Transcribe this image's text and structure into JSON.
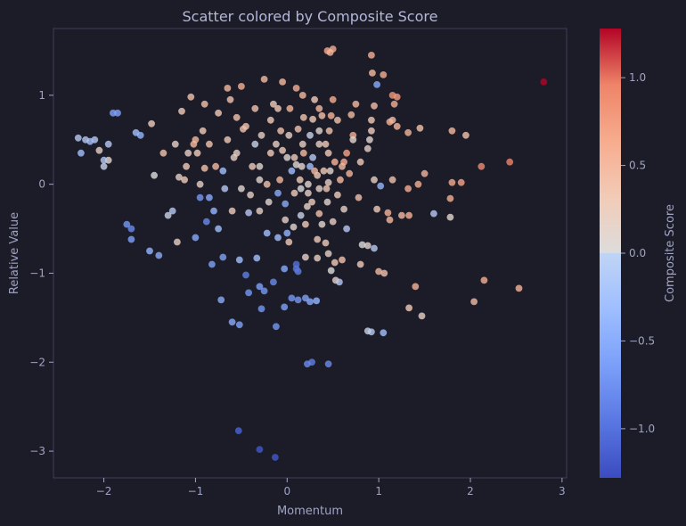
{
  "chart_data": {
    "type": "scatter",
    "title": "Scatter colored by Composite Score",
    "xlabel": "Momentum",
    "ylabel": "Relative Value",
    "colorbar_label": "Composite Score",
    "xlim": [
      -2.55,
      3.05
    ],
    "ylim": [
      -3.3,
      1.75
    ],
    "x_ticks": [
      -2,
      -1,
      0,
      1,
      2,
      3
    ],
    "x_tick_labels": [
      "−2",
      "−1",
      "0",
      "1",
      "2",
      "3"
    ],
    "y_ticks": [
      -3,
      -2,
      -1,
      0,
      1
    ],
    "y_tick_labels": [
      "−3",
      "−2",
      "−1",
      "0",
      "1"
    ],
    "color_range": [
      -1.28,
      1.28
    ],
    "color_ticks": [
      -1.0,
      -0.5,
      0.0,
      0.5,
      1.0
    ],
    "color_tick_labels": [
      "−1.0",
      "−0.5",
      "0.0",
      "0.5",
      "1.0"
    ],
    "colormap": "coolwarm",
    "grid": false,
    "points": [
      [
        2.8,
        1.15,
        1.28
      ],
      [
        2.43,
        0.25,
        0.95
      ],
      [
        2.12,
        0.2,
        0.9
      ],
      [
        2.15,
        -1.08,
        0.6
      ],
      [
        2.53,
        -1.17,
        0.55
      ],
      [
        2.04,
        -1.32,
        0.5
      ],
      [
        1.95,
        0.55,
        0.4
      ],
      [
        1.8,
        0.6,
        0.5
      ],
      [
        1.9,
        0.02,
        0.7
      ],
      [
        1.8,
        0.02,
        0.65
      ],
      [
        1.78,
        -0.16,
        0.6
      ],
      [
        1.78,
        -0.37,
        0.1
      ],
      [
        1.6,
        -0.33,
        -0.2
      ],
      [
        1.5,
        0.12,
        0.55
      ],
      [
        1.45,
        0.63,
        0.4
      ],
      [
        1.43,
        0.0,
        0.6
      ],
      [
        1.4,
        -1.15,
        0.55
      ],
      [
        1.32,
        0.58,
        0.55
      ],
      [
        1.32,
        -0.05,
        0.6
      ],
      [
        1.33,
        -0.35,
        0.55
      ],
      [
        1.25,
        -0.35,
        0.5
      ],
      [
        1.33,
        -1.39,
        0.3
      ],
      [
        1.47,
        -1.48,
        0.2
      ],
      [
        1.2,
        0.98,
        0.75
      ],
      [
        1.15,
        1.0,
        0.8
      ],
      [
        1.17,
        0.9,
        0.6
      ],
      [
        1.15,
        0.72,
        0.45
      ],
      [
        1.2,
        0.65,
        0.5
      ],
      [
        1.12,
        0.7,
        0.55
      ],
      [
        1.15,
        0.05,
        0.4
      ],
      [
        1.1,
        -0.32,
        0.55
      ],
      [
        1.12,
        -0.4,
        0.5
      ],
      [
        1.05,
        1.23,
        0.6
      ],
      [
        0.98,
        1.12,
        -0.5
      ],
      [
        0.92,
        1.45,
        0.6
      ],
      [
        0.93,
        1.25,
        0.5
      ],
      [
        0.95,
        0.88,
        0.45
      ],
      [
        0.92,
        0.72,
        0.35
      ],
      [
        0.92,
        0.6,
        0.3
      ],
      [
        0.9,
        0.5,
        0.1
      ],
      [
        0.88,
        0.4,
        0.2
      ],
      [
        0.95,
        0.05,
        0.2
      ],
      [
        1.02,
        -0.02,
        -0.4
      ],
      [
        0.98,
        -0.28,
        0.3
      ],
      [
        1.0,
        -0.98,
        0.5
      ],
      [
        1.06,
        -1.0,
        0.4
      ],
      [
        1.05,
        -1.67,
        -0.3
      ],
      [
        0.92,
        -1.66,
        -0.2
      ],
      [
        0.88,
        -1.65,
        -0.1
      ],
      [
        0.95,
        -0.72,
        -0.2
      ],
      [
        0.88,
        -0.69,
        0.1
      ],
      [
        0.82,
        -0.68,
        0.0
      ],
      [
        0.8,
        -0.9,
        0.3
      ],
      [
        0.75,
        0.9,
        0.5
      ],
      [
        0.72,
        0.55,
        0.6
      ],
      [
        0.65,
        0.35,
        0.7
      ],
      [
        0.62,
        0.25,
        0.6
      ],
      [
        0.6,
        0.2,
        0.5
      ],
      [
        0.58,
        0.05,
        0.45
      ],
      [
        0.55,
        -0.12,
        0.3
      ],
      [
        0.53,
        -1.08,
        0.2
      ],
      [
        0.57,
        -1.1,
        -0.2
      ],
      [
        0.52,
        -0.88,
        0.3
      ],
      [
        0.48,
        -0.97,
        0.0
      ],
      [
        0.5,
        1.52,
        0.6
      ],
      [
        0.44,
        1.5,
        0.65
      ],
      [
        0.47,
        1.48,
        0.55
      ],
      [
        0.5,
        0.95,
        0.6
      ],
      [
        0.48,
        0.77,
        0.55
      ],
      [
        0.46,
        0.6,
        0.4
      ],
      [
        0.45,
        0.35,
        0.3
      ],
      [
        0.47,
        0.15,
        0.1
      ],
      [
        0.45,
        0.02,
        0.2
      ],
      [
        0.43,
        -0.05,
        0.35
      ],
      [
        0.44,
        -0.2,
        0.1
      ],
      [
        0.42,
        -0.66,
        0.3
      ],
      [
        0.45,
        -0.78,
        0.2
      ],
      [
        0.45,
        -2.02,
        -0.8
      ],
      [
        0.38,
        0.77,
        0.4
      ],
      [
        0.35,
        0.6,
        0.1
      ],
      [
        0.35,
        0.45,
        0.2
      ],
      [
        0.33,
        0.1,
        0.3
      ],
      [
        0.35,
        -0.05,
        0.15
      ],
      [
        0.35,
        -0.33,
        0.4
      ],
      [
        0.33,
        -0.62,
        0.3
      ],
      [
        0.33,
        -0.83,
        0.2
      ],
      [
        0.32,
        -1.31,
        -0.4
      ],
      [
        0.27,
        -2.0,
        -0.9
      ],
      [
        0.22,
        -2.02,
        -0.8
      ],
      [
        0.3,
        0.95,
        0.3
      ],
      [
        0.28,
        0.73,
        0.3
      ],
      [
        0.25,
        0.55,
        -0.1
      ],
      [
        0.25,
        0.2,
        -0.3
      ],
      [
        0.23,
        0.0,
        0.1
      ],
      [
        0.23,
        -0.1,
        0.2
      ],
      [
        0.22,
        -0.25,
        0.15
      ],
      [
        0.2,
        -0.45,
        0.3
      ],
      [
        0.2,
        -0.82,
        0.2
      ],
      [
        0.2,
        -1.28,
        -0.6
      ],
      [
        0.25,
        -1.32,
        -0.5
      ],
      [
        0.17,
        1.0,
        0.5
      ],
      [
        0.18,
        0.75,
        0.4
      ],
      [
        0.17,
        0.45,
        0.2
      ],
      [
        0.16,
        0.2,
        0.1
      ],
      [
        0.15,
        -0.05,
        0.0
      ],
      [
        0.15,
        -0.35,
        -0.1
      ],
      [
        0.12,
        -0.98,
        -0.9
      ],
      [
        0.12,
        -1.3,
        -0.7
      ],
      [
        0.1,
        1.08,
        0.6
      ],
      [
        0.12,
        0.62,
        0.4
      ],
      [
        0.08,
        0.3,
        0.3
      ],
      [
        0.08,
        -0.1,
        0.3
      ],
      [
        0.07,
        -0.48,
        0.1
      ],
      [
        0.1,
        -0.9,
        -1.0
      ],
      [
        0.1,
        -0.95,
        -0.95
      ],
      [
        0.05,
        -1.28,
        -0.7
      ],
      [
        0.03,
        0.85,
        0.5
      ],
      [
        0.02,
        0.55,
        0.2
      ],
      [
        0.0,
        0.3,
        0.1
      ],
      [
        -0.02,
        -0.22,
        -0.5
      ],
      [
        -0.02,
        -0.4,
        0.2
      ],
      [
        -0.03,
        -0.95,
        -0.5
      ],
      [
        -0.03,
        -1.38,
        -0.6
      ],
      [
        -0.05,
        1.15,
        0.5
      ],
      [
        -0.07,
        0.6,
        0.4
      ],
      [
        -0.08,
        0.05,
        0.5
      ],
      [
        -0.1,
        -0.1,
        -0.5
      ],
      [
        -0.1,
        -0.6,
        -0.3
      ],
      [
        -0.12,
        -1.6,
        -0.7
      ],
      [
        -0.15,
        -1.1,
        -0.8
      ],
      [
        -0.13,
        -3.07,
        -1.2
      ],
      [
        -0.15,
        0.9,
        0.3
      ],
      [
        -0.18,
        0.35,
        0.3
      ],
      [
        -0.2,
        -0.2,
        0.1
      ],
      [
        -0.22,
        -0.55,
        -0.3
      ],
      [
        -0.25,
        -1.2,
        -0.7
      ],
      [
        -0.25,
        1.18,
        0.5
      ],
      [
        -0.28,
        0.55,
        0.2
      ],
      [
        -0.3,
        0.05,
        0.1
      ],
      [
        -0.3,
        -0.3,
        0.2
      ],
      [
        -0.33,
        -0.83,
        -0.3
      ],
      [
        -0.3,
        -1.15,
        -0.6
      ],
      [
        -0.28,
        -1.4,
        -0.7
      ],
      [
        -0.3,
        -2.98,
        -1.2
      ],
      [
        -0.35,
        0.85,
        0.4
      ],
      [
        -0.38,
        0.2,
        0.3
      ],
      [
        -0.42,
        -0.32,
        -0.2
      ],
      [
        -0.42,
        -1.22,
        -0.7
      ],
      [
        -0.45,
        -1.02,
        -0.9
      ],
      [
        -0.48,
        0.62,
        0.4
      ],
      [
        -0.5,
        1.1,
        0.6
      ],
      [
        -0.5,
        -0.05,
        0.1
      ],
      [
        -0.52,
        -0.85,
        -0.3
      ],
      [
        -0.52,
        -1.58,
        -0.6
      ],
      [
        -0.53,
        -2.77,
        -1.1
      ],
      [
        -0.55,
        0.75,
        0.4
      ],
      [
        -0.58,
        0.3,
        0.2
      ],
      [
        -0.6,
        -0.3,
        0.3
      ],
      [
        -0.6,
        -1.55,
        -0.5
      ],
      [
        -0.65,
        1.08,
        0.5
      ],
      [
        -0.65,
        0.5,
        0.3
      ],
      [
        -0.68,
        -0.05,
        -0.2
      ],
      [
        -0.7,
        -0.82,
        -0.6
      ],
      [
        -0.72,
        -1.3,
        -0.5
      ],
      [
        -0.75,
        0.8,
        0.3
      ],
      [
        -0.78,
        0.2,
        0.5
      ],
      [
        -0.8,
        -0.3,
        -0.4
      ],
      [
        -0.82,
        -0.9,
        -0.6
      ],
      [
        -0.85,
        0.45,
        0.4
      ],
      [
        -0.88,
        -0.42,
        -0.8
      ],
      [
        -0.9,
        0.9,
        0.4
      ],
      [
        -0.92,
        0.6,
        0.3
      ],
      [
        -0.95,
        0.0,
        0.2
      ],
      [
        -0.95,
        -0.15,
        -0.7
      ],
      [
        -0.98,
        0.35,
        0.3
      ],
      [
        -1.0,
        -0.6,
        -0.5
      ],
      [
        -1.02,
        0.45,
        0.5
      ],
      [
        -1.05,
        0.98,
        0.4
      ],
      [
        -1.08,
        0.35,
        0.2
      ],
      [
        -1.12,
        0.05,
        0.3
      ],
      [
        -1.15,
        0.82,
        0.3
      ],
      [
        -1.18,
        0.08,
        0.2
      ],
      [
        -1.2,
        -0.65,
        0.2
      ],
      [
        -1.22,
        0.45,
        0.2
      ],
      [
        -1.25,
        -0.3,
        -0.2
      ],
      [
        -1.3,
        -0.35,
        -0.1
      ],
      [
        -1.35,
        0.35,
        0.4
      ],
      [
        -1.4,
        -0.8,
        -0.5
      ],
      [
        -1.45,
        0.1,
        0.0
      ],
      [
        -1.48,
        0.68,
        0.3
      ],
      [
        -1.5,
        -0.75,
        -0.4
      ],
      [
        -1.6,
        0.55,
        -0.4
      ],
      [
        -1.65,
        0.58,
        -0.3
      ],
      [
        -1.7,
        -0.62,
        -0.6
      ],
      [
        -1.7,
        -0.5,
        -0.8
      ],
      [
        -1.75,
        -0.45,
        -0.7
      ],
      [
        -1.85,
        0.8,
        -0.6
      ],
      [
        -1.9,
        0.8,
        -0.6
      ],
      [
        -1.95,
        0.45,
        -0.2
      ],
      [
        -1.95,
        0.27,
        0.1
      ],
      [
        -2.0,
        0.27,
        -0.2
      ],
      [
        -2.0,
        0.2,
        -0.1
      ],
      [
        -2.05,
        0.38,
        0.2
      ],
      [
        -2.1,
        0.5,
        -0.2
      ],
      [
        -2.15,
        0.48,
        -0.3
      ],
      [
        -2.2,
        0.5,
        -0.2
      ],
      [
        -2.25,
        0.35,
        -0.3
      ],
      [
        -2.28,
        0.52,
        -0.2
      ],
      [
        0.7,
        0.78,
        0.5
      ],
      [
        0.68,
        0.12,
        0.55
      ],
      [
        0.65,
        -0.5,
        -0.2
      ],
      [
        0.6,
        -0.85,
        0.4
      ],
      [
        0.55,
        0.72,
        0.4
      ],
      [
        0.52,
        0.25,
        0.55
      ],
      [
        0.5,
        -0.42,
        0.2
      ],
      [
        0.4,
        0.15,
        0.3
      ],
      [
        0.38,
        -0.45,
        0.1
      ],
      [
        0.3,
        0.15,
        0.5
      ],
      [
        0.28,
        0.3,
        -0.2
      ],
      [
        0.27,
        -0.2,
        0.3
      ],
      [
        0.18,
        0.35,
        0.5
      ],
      [
        0.14,
        0.05,
        0.3
      ],
      [
        0.1,
        0.22,
        0.1
      ],
      [
        0.05,
        0.15,
        -0.3
      ],
      [
        0.02,
        -0.65,
        0.3
      ],
      [
        -0.05,
        0.38,
        0.3
      ],
      [
        -0.12,
        0.45,
        0.2
      ],
      [
        -0.18,
        0.72,
        0.3
      ],
      [
        -0.22,
        0.0,
        0.4
      ],
      [
        -0.35,
        0.45,
        -0.1
      ],
      [
        -0.4,
        -0.12,
        0.2
      ],
      [
        -0.45,
        0.65,
        0.4
      ],
      [
        -0.62,
        0.95,
        0.4
      ],
      [
        -0.7,
        0.15,
        -0.3
      ],
      [
        -0.75,
        -0.5,
        -0.3
      ],
      [
        -0.85,
        -0.15,
        -0.5
      ],
      [
        -0.9,
        0.18,
        0.4
      ],
      [
        -1.0,
        0.5,
        0.5
      ],
      [
        -1.1,
        0.2,
        0.3
      ],
      [
        0.8,
        0.25,
        0.3
      ],
      [
        0.78,
        -0.15,
        0.4
      ],
      [
        0.72,
        0.5,
        0.1
      ],
      [
        0.62,
        -0.28,
        0.2
      ],
      [
        0.42,
        0.45,
        0.3
      ],
      [
        0.0,
        -0.55,
        -0.4
      ],
      [
        -0.3,
        0.2,
        0.1
      ],
      [
        -0.55,
        0.35,
        0.2
      ],
      [
        0.35,
        0.85,
        0.5
      ],
      [
        -0.1,
        0.85,
        0.3
      ]
    ]
  }
}
